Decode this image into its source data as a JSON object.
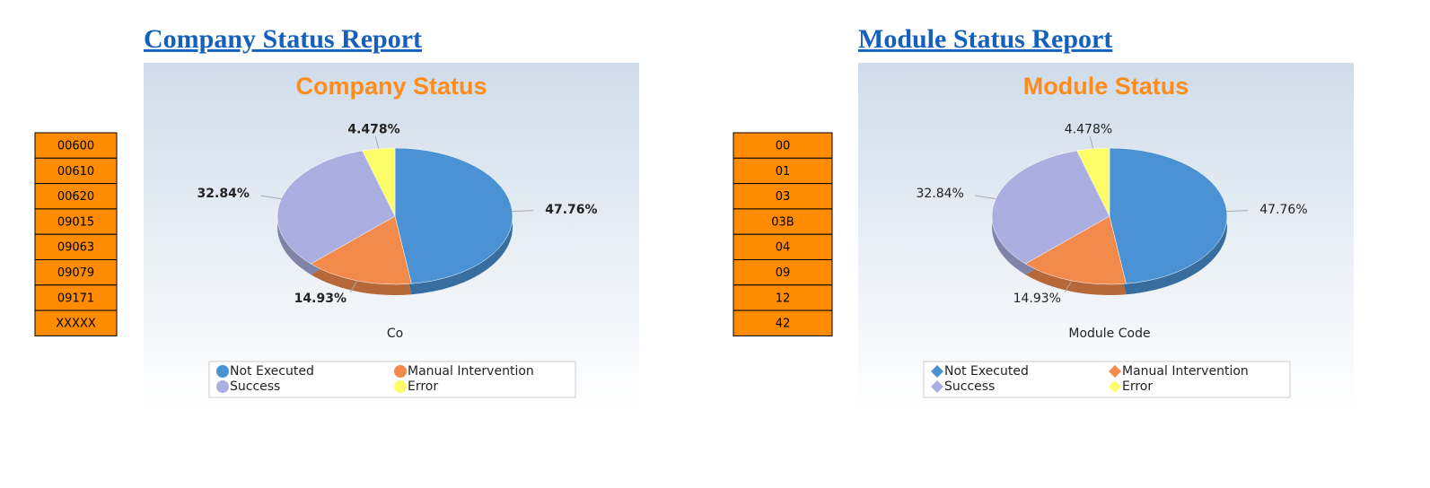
{
  "panels": [
    {
      "heading": "Company Status Report",
      "codes": [
        "00600",
        "00610",
        "00620",
        "09015",
        "09063",
        "09079",
        "09171",
        "XXXXX"
      ]
    },
    {
      "heading": "Module Status Report",
      "codes": [
        "00",
        "01",
        "03",
        "03B",
        "04",
        "09",
        "12",
        "42"
      ]
    }
  ],
  "chart_data": [
    {
      "type": "pie",
      "title": "Company Status",
      "x_label": "Co",
      "categories": [
        "Not Executed",
        "Manual Intervention",
        "Success",
        "Error"
      ],
      "values": [
        47.76,
        14.93,
        32.84,
        4.478
      ],
      "value_labels": [
        "47.76%",
        "14.93%",
        "32.84%",
        "4.478%"
      ],
      "colors": [
        "#4a92d4",
        "#f28a4c",
        "#abaee0",
        "#fdfd6a"
      ],
      "legend_marker": "circle",
      "label_weight": "bold"
    },
    {
      "type": "pie",
      "title": "Module Status",
      "x_label": "Module Code",
      "categories": [
        "Not Executed",
        "Manual Intervention",
        "Success",
        "Error"
      ],
      "values": [
        47.76,
        14.93,
        32.84,
        4.478
      ],
      "value_labels": [
        "47.76%",
        "14.93%",
        "32.84%",
        "4.478%"
      ],
      "colors": [
        "#4a92d4",
        "#f28a4c",
        "#abaee0",
        "#fdfd6a"
      ],
      "legend_marker": "diamond",
      "label_weight": "normal"
    }
  ]
}
